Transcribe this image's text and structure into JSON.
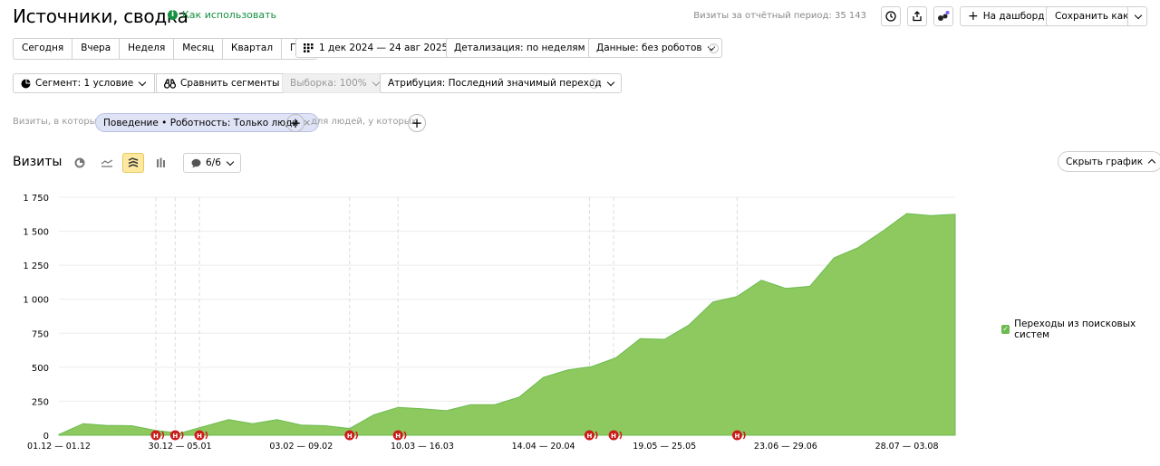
{
  "header": {
    "title": "Источники, сводка",
    "how_to_use": "Как использовать",
    "visits_total_label": "Визиты за отчётный период: 35 143",
    "add_dashboard": "На дашборд",
    "save_as": "Сохранить как"
  },
  "toolbar": {
    "periods": [
      "Сегодня",
      "Вчера",
      "Неделя",
      "Месяц",
      "Квартал",
      "Год"
    ],
    "date_range": "1 дек 2024 — 24 авг 2025",
    "detail": "Детализация: по неделям",
    "data_filter": "Данные: без роботов",
    "segment": "Сегмент: 1 условие",
    "compare": "Сравнить сегменты",
    "sample": "Выборка: 100%",
    "attribution": "Атрибуция: Последний значимый переход"
  },
  "condition": {
    "prefix": "Визиты, в которых",
    "chip": "Поведение • Роботность: Только люди",
    "people_label": "для людей, у которых"
  },
  "chart_section": {
    "title": "Визиты",
    "series_count": "6/6",
    "hide_chart": "Скрыть график"
  },
  "icons": {
    "compare": "binoculars-icon",
    "calendar": "calendar-icon",
    "add": "plus-icon",
    "export": "export-icon",
    "clock": "clock-icon",
    "chart_types": [
      "pie-chart-icon",
      "line-chart-icon",
      "area-chart-icon",
      "bar-chart-icon"
    ],
    "comment": "comment-icon"
  },
  "colors": {
    "area": "#8ec95f",
    "area_stroke": "#6bbb4f",
    "annotation": "#cc1b1b",
    "accent": "#fde9a0"
  },
  "chart_data": {
    "type": "area",
    "title": "",
    "xlabel": "",
    "ylabel": "",
    "ylim": [
      0,
      1750
    ],
    "yticks": [
      "0",
      "250",
      "500",
      "750",
      "1 000",
      "1 250",
      "1 500",
      "1 750"
    ],
    "xticks": [
      {
        "index": 0,
        "label": "01.12 — 01.12"
      },
      {
        "index": 5,
        "label": "30.12 — 05.01"
      },
      {
        "index": 10,
        "label": "03.02 — 09.02"
      },
      {
        "index": 15,
        "label": "10.03 — 16.03"
      },
      {
        "index": 20,
        "label": "14.04 — 20.04"
      },
      {
        "index": 25,
        "label": "19.05 — 25.05"
      },
      {
        "index": 30,
        "label": "23.06 — 29.06"
      },
      {
        "index": 35,
        "label": "28.07 — 03.08"
      }
    ],
    "series": [
      {
        "name": "Переходы из поисковых систем",
        "values": [
          5,
          85,
          72,
          70,
          35,
          15,
          65,
          115,
          85,
          115,
          75,
          70,
          50,
          150,
          205,
          195,
          180,
          225,
          225,
          280,
          425,
          480,
          505,
          570,
          710,
          705,
          810,
          980,
          1020,
          1140,
          1080,
          1095,
          1305,
          1380,
          1500,
          1630,
          1615,
          1625
        ]
      }
    ],
    "annotations": [
      {
        "x": 4.0,
        "label": "Н"
      },
      {
        "x": 4.8,
        "label": "Н"
      },
      {
        "x": 5.8,
        "label": "Н"
      },
      {
        "x": 12.0,
        "label": "Н"
      },
      {
        "x": 14.0,
        "label": "Н"
      },
      {
        "x": 21.9,
        "label": "Н"
      },
      {
        "x": 22.9,
        "label": "Н"
      },
      {
        "x": 28.0,
        "label": "Н"
      }
    ],
    "legend_position": "right",
    "grid": true
  }
}
